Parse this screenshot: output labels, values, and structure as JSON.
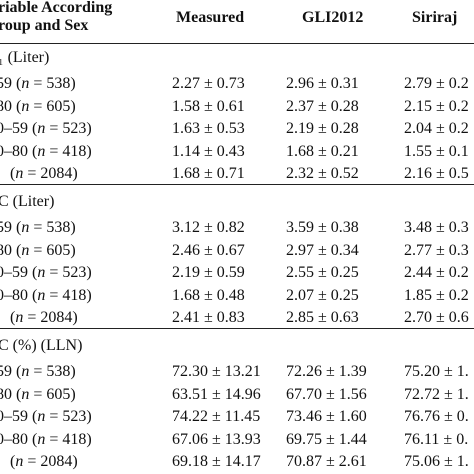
{
  "header": {
    "variable_line1": "riable According",
    "variable_line2": "roup and Sex",
    "columns": [
      "Measured",
      "GLI2012",
      "Siriraj"
    ]
  },
  "sections": [
    {
      "title": "₁ (Liter)",
      "rows": [
        {
          "group": "59",
          "n_label": "n",
          "n_value": " = 538)",
          "measured": "2.27 ± 0.73",
          "gli2012": "2.96 ± 0.31",
          "siriraj": "2.79 ± 0.2"
        },
        {
          "group": "80",
          "n_label": "n",
          "n_value": " = 605)",
          "measured": "1.58 ± 0.61",
          "gli2012": "2.37 ± 0.28",
          "siriraj": "2.15 ± 0.2"
        },
        {
          "group": "0–59",
          "n_label": "n",
          "n_value": " = 523)",
          "measured": "1.63 ± 0.53",
          "gli2012": "2.19 ± 0.28",
          "siriraj": "2.04 ± 0.2"
        },
        {
          "group": "0–80",
          "n_label": "n",
          "n_value": " = 418)",
          "measured": "1.14 ± 0.43",
          "gli2012": "1.68 ± 0.21",
          "siriraj": "1.55 ± 0.1"
        },
        {
          "group": "",
          "n_label": "n",
          "n_value": " = 2084)",
          "measured": "1.68 ± 0.71",
          "gli2012": "2.32 ± 0.52",
          "siriraj": "2.16 ± 0.5"
        }
      ]
    },
    {
      "title": "C (Liter)",
      "rows": [
        {
          "group": "59",
          "n_label": "n",
          "n_value": " = 538)",
          "measured": "3.12 ± 0.82",
          "gli2012": "3.59 ± 0.38",
          "siriraj": "3.48 ± 0.3"
        },
        {
          "group": "80",
          "n_label": "n",
          "n_value": " = 605)",
          "measured": "2.46 ± 0.67",
          "gli2012": "2.97 ± 0.34",
          "siriraj": "2.77 ± 0.3"
        },
        {
          "group": "0–59",
          "n_label": "n",
          "n_value": " = 523)",
          "measured": "2.19 ± 0.59",
          "gli2012": "2.55 ± 0.25",
          "siriraj": "2.44 ± 0.2"
        },
        {
          "group": "0–80",
          "n_label": "n",
          "n_value": " = 418)",
          "measured": "1.68 ± 0.48",
          "gli2012": "2.07 ± 0.25",
          "siriraj": "1.85 ± 0.2"
        },
        {
          "group": "",
          "n_label": "n",
          "n_value": " = 2084)",
          "measured": "2.41 ± 0.83",
          "gli2012": "2.85 ± 0.63",
          "siriraj": "2.70 ± 0.6"
        }
      ]
    },
    {
      "title": "C (%) (LLN)",
      "rows": [
        {
          "group": "59",
          "n_label": "n",
          "n_value": " = 538)",
          "measured": "72.30 ± 13.21",
          "gli2012": "72.26 ± 1.39",
          "siriraj": "75.20 ± 1."
        },
        {
          "group": "80",
          "n_label": "n",
          "n_value": " = 605)",
          "measured": "63.51 ± 14.96",
          "gli2012": "67.70 ± 1.56",
          "siriraj": "72.72 ± 1."
        },
        {
          "group": "0–59",
          "n_label": "n",
          "n_value": " = 523)",
          "measured": "74.22 ± 11.45",
          "gli2012": "73.46 ± 1.60",
          "siriraj": "76.76 ± 0."
        },
        {
          "group": "0–80",
          "n_label": "n",
          "n_value": " = 418)",
          "measured": "67.06 ± 13.93",
          "gli2012": "69.75 ± 1.44",
          "siriraj": "76.11 ± 0."
        },
        {
          "group": "",
          "n_label": "n",
          "n_value": " = 2084)",
          "measured": "69.18 ± 14.17",
          "gli2012": "70.87 ± 2.61",
          "siriraj": "75.06 ± 1."
        }
      ]
    }
  ]
}
